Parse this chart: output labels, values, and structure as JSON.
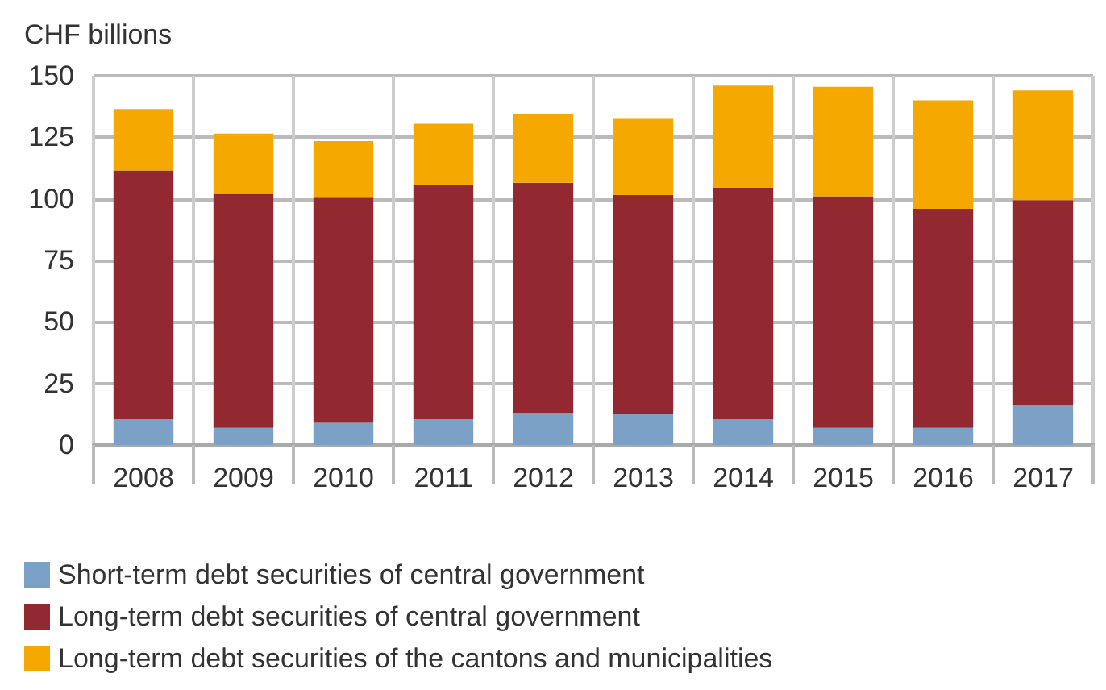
{
  "chart_data": {
    "type": "bar",
    "stacked": true,
    "ylabel": "CHF billions",
    "categories": [
      "2008",
      "2009",
      "2010",
      "2011",
      "2012",
      "2013",
      "2014",
      "2015",
      "2016",
      "2017"
    ],
    "series": [
      {
        "name": "Short-term debt securities of central government",
        "color": "#7ba1c7",
        "values": [
          10.5,
          7,
          9,
          10.5,
          13,
          12.5,
          10.5,
          7,
          7,
          16
        ]
      },
      {
        "name": "Long-term debt securities of central government",
        "color": "#922830",
        "values": [
          101,
          95,
          91.5,
          95,
          93.5,
          89,
          94,
          94,
          89,
          83.5
        ]
      },
      {
        "name": "Long-term debt securities of the cantons and municipalities",
        "color": "#f5a800",
        "values": [
          25,
          24.5,
          23,
          25,
          28,
          31,
          41.5,
          44.5,
          44,
          44.5
        ]
      }
    ],
    "ylim": [
      0,
      150
    ],
    "yticks": [
      0,
      25,
      50,
      75,
      100,
      125,
      150
    ],
    "grid": true,
    "legend": "bottom"
  }
}
